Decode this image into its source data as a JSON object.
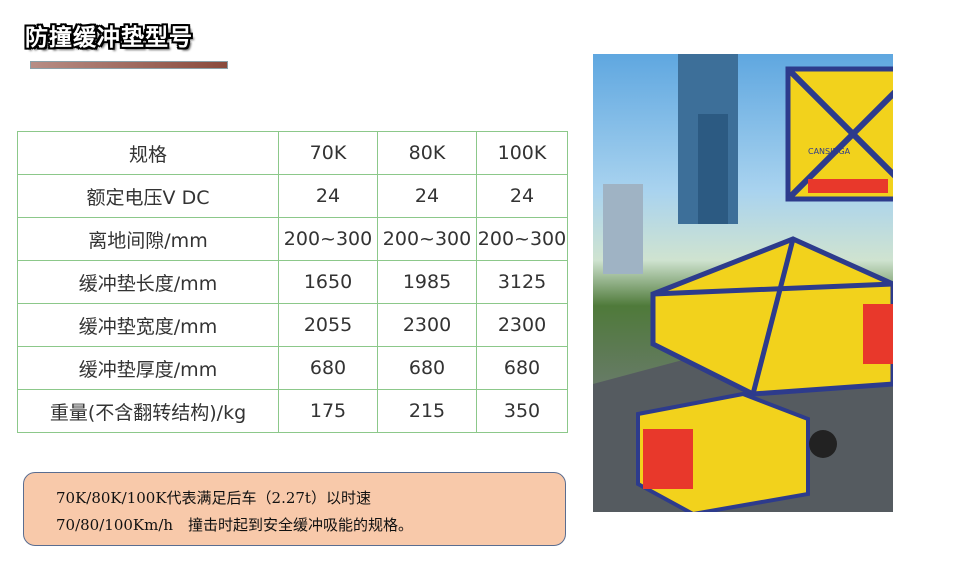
{
  "title": "防撞缓冲垫型号",
  "table": {
    "header": [
      "规格",
      "70K",
      "80K",
      "100K"
    ],
    "rows": [
      [
        "额定电压V DC",
        "24",
        "24",
        "24"
      ],
      [
        "离地间隙/mm",
        "200~300",
        "200~300",
        "200~300"
      ],
      [
        "缓冲垫长度/mm",
        "1650",
        "1985",
        "3125"
      ],
      [
        "缓冲垫宽度/mm",
        "2055",
        "2300",
        "2300"
      ],
      [
        "缓冲垫厚度/mm",
        "680",
        "680",
        "680"
      ],
      [
        "重量(不含翻转结构)/kg",
        "175",
        "215",
        "350"
      ]
    ]
  },
  "note": {
    "line1": "70K/80K/100K代表满足后车（2.27t）以时速",
    "line2": "70/80/100Km/h　撞击时起到安全缓冲吸能的规格。"
  },
  "photo": {
    "brand": "CANSINGA"
  },
  "colors": {
    "table_border": "#8cc88a",
    "note_bg": "#f8c9aa",
    "accent_bar": "#8a4a3c"
  }
}
